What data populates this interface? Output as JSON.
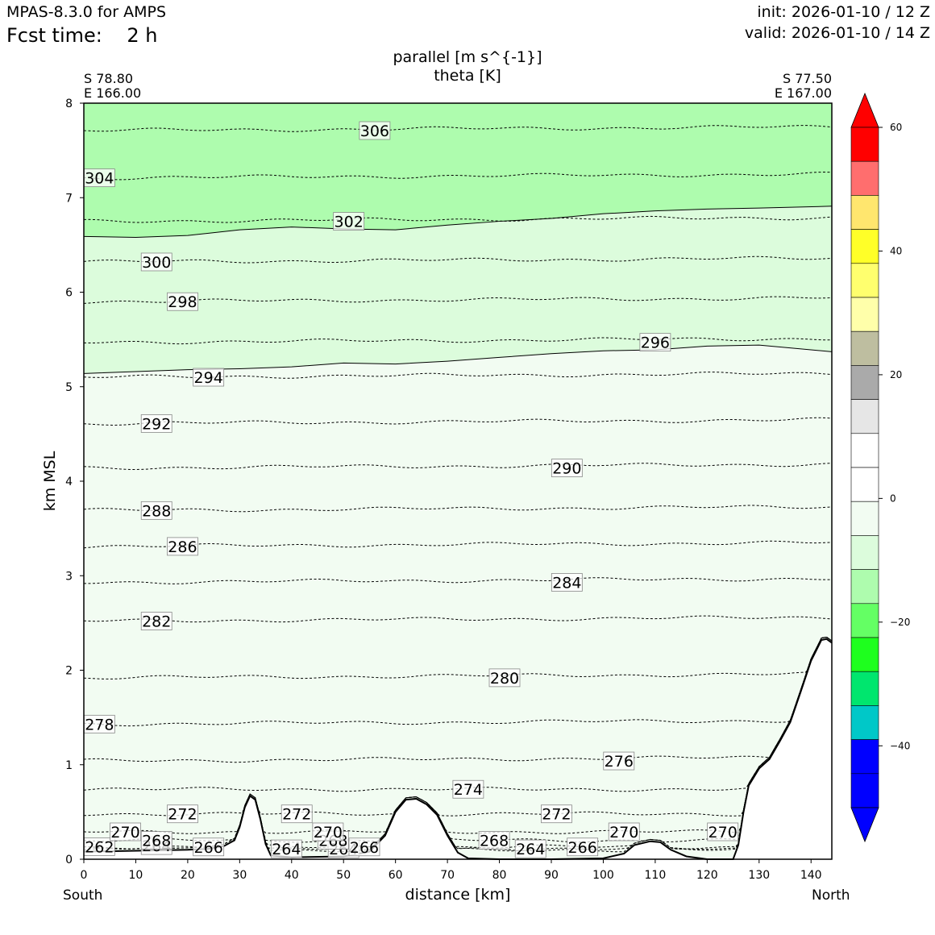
{
  "header": {
    "model": "MPAS-8.3.0 for AMPS",
    "fcst_time": "Fcst time:    2 h",
    "init": "init: 2026-01-10 / 12 Z",
    "valid": "valid: 2026-01-10 / 14 Z"
  },
  "chart_data": {
    "type": "cross-section",
    "title_lines": [
      "parallel [m s^{-1}]",
      "theta [K]"
    ],
    "xlabel": "distance [km]",
    "ylabel": "km MSL",
    "xlim": [
      0,
      144
    ],
    "ylim": [
      0,
      8
    ],
    "x_ticks": [
      0,
      10,
      20,
      30,
      40,
      50,
      60,
      70,
      80,
      90,
      100,
      110,
      120,
      130,
      140
    ],
    "y_ticks": [
      0,
      1,
      2,
      3,
      4,
      5,
      6,
      7,
      8
    ],
    "endpoints": {
      "left": {
        "lat": "S 78.80",
        "lon": "E 166.00",
        "side": "South"
      },
      "right": {
        "lat": "S 77.50",
        "lon": "E 167.00",
        "side": "North"
      }
    },
    "wind_fill_bands": [
      {
        "range": "-10 to -15",
        "color": "#dcfcdc",
        "lower_boundary_km": [
          [
            0,
            6.59
          ],
          [
            10,
            6.58
          ],
          [
            20,
            6.6
          ],
          [
            30,
            6.66
          ],
          [
            40,
            6.69
          ],
          [
            50,
            6.67
          ],
          [
            60,
            6.66
          ],
          [
            70,
            6.71
          ],
          [
            80,
            6.75
          ],
          [
            90,
            6.78
          ],
          [
            100,
            6.83
          ],
          [
            110,
            6.86
          ],
          [
            120,
            6.88
          ],
          [
            130,
            6.89
          ],
          [
            144,
            6.91
          ]
        ]
      },
      {
        "range": "-15 to -20",
        "color": "#aefcae"
      }
    ],
    "wind_fill_background": "#f2fcf2",
    "fill_boundary_5_1km": [
      [
        0,
        5.14
      ],
      [
        10,
        5.16
      ],
      [
        20,
        5.18
      ],
      [
        30,
        5.19
      ],
      [
        40,
        5.21
      ],
      [
        50,
        5.25
      ],
      [
        60,
        5.24
      ],
      [
        70,
        5.27
      ],
      [
        80,
        5.31
      ],
      [
        90,
        5.35
      ],
      [
        100,
        5.38
      ],
      [
        110,
        5.39
      ],
      [
        120,
        5.43
      ],
      [
        130,
        5.44
      ],
      [
        144,
        5.37
      ]
    ],
    "theta_contours": [
      {
        "value": 262,
        "y_km": 0.1,
        "label_x": 3
      },
      {
        "value": 264,
        "y_km": 0.11,
        "label_x": 14,
        "extra_labels_x": [
          39,
          50,
          86
        ]
      },
      {
        "value": 266,
        "y_km": 0.13,
        "label_x": 24,
        "extra_labels_x": [
          54,
          96
        ]
      },
      {
        "value": 268,
        "y_km": 0.2,
        "label_x": 14,
        "extra_labels_x": [
          48,
          79
        ]
      },
      {
        "value": 270,
        "y_km": 0.29,
        "label_x": 8,
        "extra_labels_x": [
          47,
          104,
          123
        ]
      },
      {
        "value": 272,
        "y_km": 0.48,
        "label_x": 19,
        "extra_labels_x": [
          41,
          91
        ]
      },
      {
        "value": 274,
        "y_km": 0.74,
        "label_x": 74
      },
      {
        "value": 276,
        "y_km": 1.04,
        "label_x": 103
      },
      {
        "value": 278,
        "y_km": 1.43,
        "label_x": 3
      },
      {
        "value": 280,
        "y_km": 1.92,
        "label_x": 81
      },
      {
        "value": 282,
        "y_km": 2.52,
        "label_x": 14
      },
      {
        "value": 284,
        "y_km": 2.93,
        "label_x": 93
      },
      {
        "value": 286,
        "y_km": 3.31,
        "label_x": 19
      },
      {
        "value": 288,
        "y_km": 3.69,
        "label_x": 14
      },
      {
        "value": 290,
        "y_km": 4.14,
        "label_x": 93
      },
      {
        "value": 292,
        "y_km": 4.61,
        "label_x": 14
      },
      {
        "value": 294,
        "y_km": 5.1,
        "label_x": 24
      },
      {
        "value": 296,
        "y_km": 5.47,
        "label_x": 110
      },
      {
        "value": 298,
        "y_km": 5.9,
        "label_x": 19
      },
      {
        "value": 300,
        "y_km": 6.32,
        "label_x": 14
      },
      {
        "value": 302,
        "y_km": 6.75,
        "label_x": 51
      },
      {
        "value": 304,
        "y_km": 7.21,
        "label_x": 3
      },
      {
        "value": 306,
        "y_km": 7.71,
        "label_x": 56
      }
    ],
    "terrain_km": [
      [
        0,
        0.08
      ],
      [
        10,
        0.09
      ],
      [
        20,
        0.1
      ],
      [
        24,
        0.11
      ],
      [
        27,
        0.14
      ],
      [
        29,
        0.2
      ],
      [
        30,
        0.34
      ],
      [
        31,
        0.55
      ],
      [
        32,
        0.67
      ],
      [
        33,
        0.63
      ],
      [
        34,
        0.42
      ],
      [
        35,
        0.16
      ],
      [
        36,
        0.04
      ],
      [
        40,
        0.02
      ],
      [
        50,
        0.03
      ],
      [
        55,
        0.08
      ],
      [
        58,
        0.25
      ],
      [
        60,
        0.5
      ],
      [
        62,
        0.63
      ],
      [
        64,
        0.64
      ],
      [
        66,
        0.58
      ],
      [
        68,
        0.47
      ],
      [
        70,
        0.25
      ],
      [
        72,
        0.07
      ],
      [
        74,
        0.01
      ],
      [
        80,
        0.0
      ],
      [
        90,
        0.0
      ],
      [
        100,
        0.01
      ],
      [
        104,
        0.06
      ],
      [
        106,
        0.15
      ],
      [
        109,
        0.19
      ],
      [
        111,
        0.18
      ],
      [
        113,
        0.1
      ],
      [
        116,
        0.03
      ],
      [
        120,
        0.0
      ],
      [
        125,
        0.0
      ],
      [
        126,
        0.15
      ],
      [
        127,
        0.5
      ],
      [
        128,
        0.78
      ],
      [
        130,
        0.96
      ],
      [
        132,
        1.06
      ],
      [
        134,
        1.25
      ],
      [
        136,
        1.45
      ],
      [
        138,
        1.77
      ],
      [
        140,
        2.1
      ],
      [
        142,
        2.32
      ],
      [
        143,
        2.33
      ],
      [
        144,
        2.29
      ]
    ],
    "colorbar": {
      "ticks": [
        60,
        40,
        20,
        0,
        -20,
        -40
      ],
      "colors_top_to_bottom": [
        "#ff0000",
        "#ff0000",
        "#ff6e6e",
        "#ffe66e",
        "#ffff28",
        "#ffff6e",
        "#ffffaa",
        "#bebea0",
        "#aaaaaa",
        "#e6e6e6",
        "#ffffff",
        "#ffffff",
        "#f2fcf2",
        "#dcfcdc",
        "#aefcae",
        "#64ff64",
        "#1eff1e",
        "#00e66e",
        "#00c8c8",
        "#0000ff",
        "#0000ff",
        "#0000ff"
      ]
    }
  }
}
